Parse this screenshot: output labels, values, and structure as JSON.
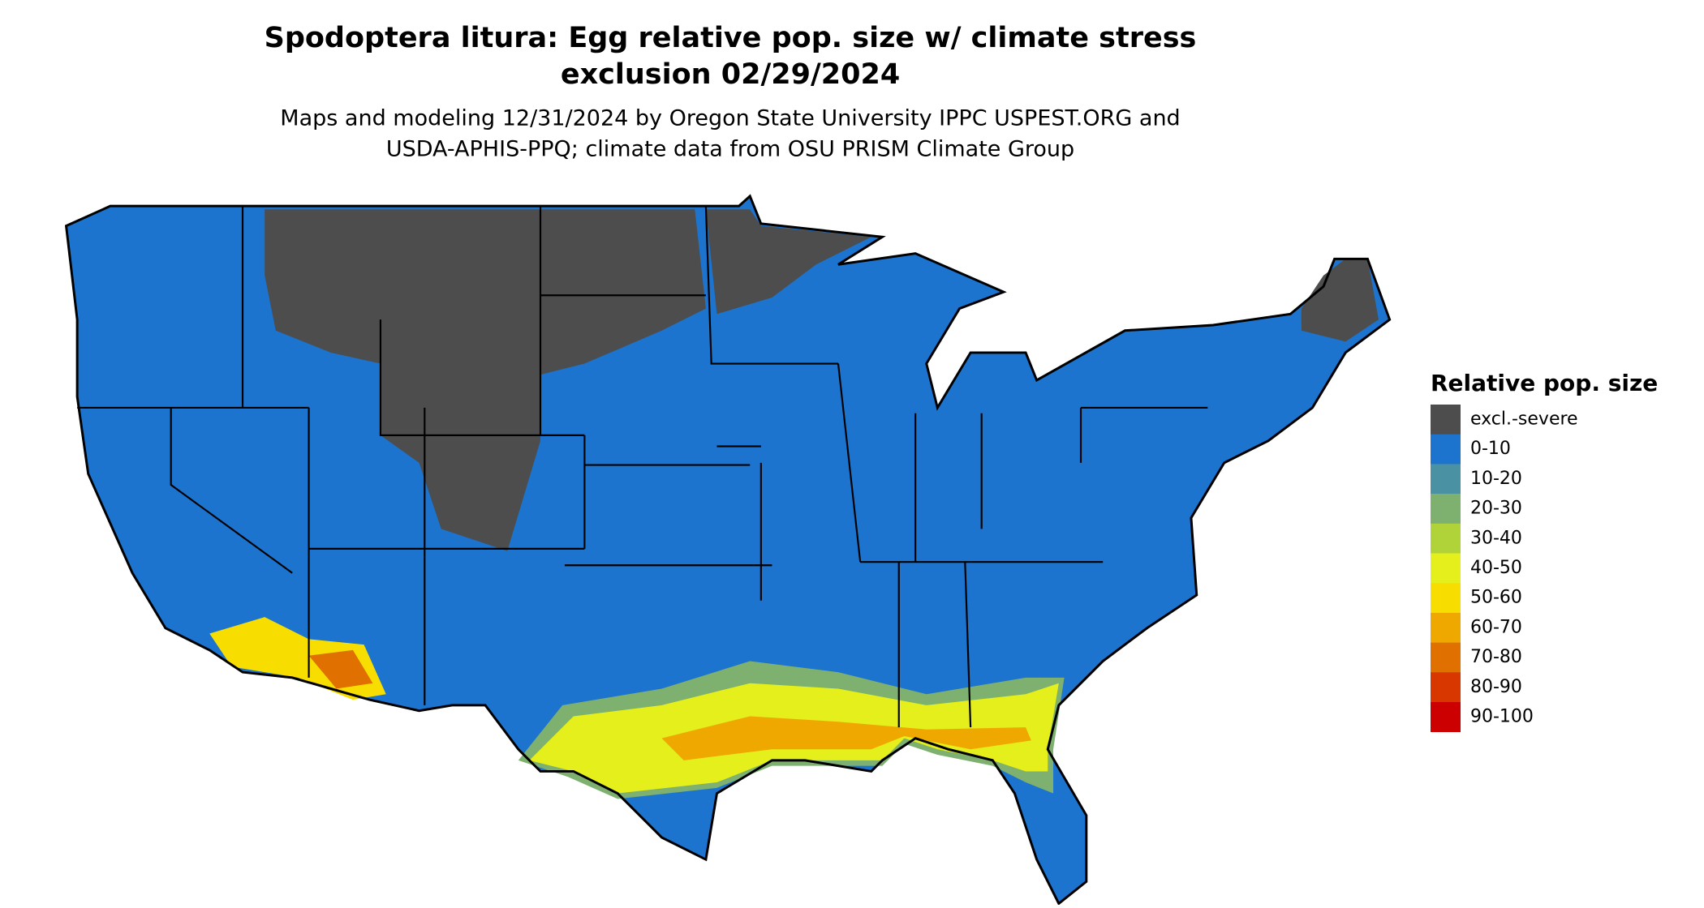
{
  "title": [
    "Spodoptera litura: Egg relative pop. size w/ climate stress",
    "exclusion 02/29/2024"
  ],
  "subtitle": [
    "Maps and modeling 12/31/2024 by Oregon State University IPPC USPEST.ORG and",
    "USDA-APHIS-PPQ; climate data from OSU PRISM Climate Group"
  ],
  "legend": {
    "title": "Relative pop. size",
    "items": [
      {
        "label": "excl.-severe",
        "color": "#4d4d4d"
      },
      {
        "label": "0-10",
        "color": "#1c74cf"
      },
      {
        "label": "10-20",
        "color": "#4a91a4"
      },
      {
        "label": "20-30",
        "color": "#7eb06f"
      },
      {
        "label": "30-40",
        "color": "#b0d33a"
      },
      {
        "label": "40-50",
        "color": "#e4ef1b"
      },
      {
        "label": "50-60",
        "color": "#f8de00"
      },
      {
        "label": "60-70",
        "color": "#eea800"
      },
      {
        "label": "70-80",
        "color": "#e07100"
      },
      {
        "label": "80-90",
        "color": "#d83800"
      },
      {
        "label": "90-100",
        "color": "#cc0000"
      }
    ]
  }
}
